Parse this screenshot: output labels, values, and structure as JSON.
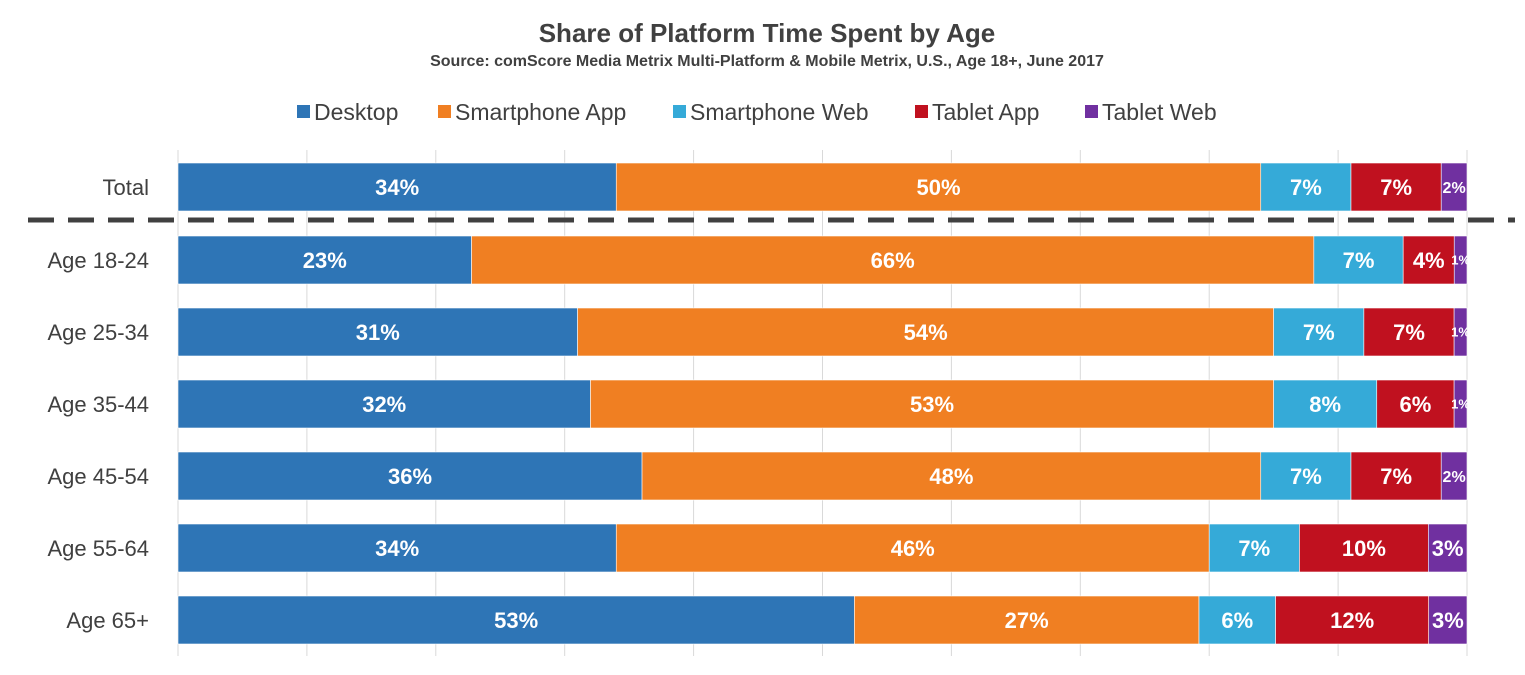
{
  "chart_data": {
    "type": "bar",
    "orientation": "horizontal",
    "stacked": true,
    "title": "Share of Platform Time Spent by Age",
    "subtitle": "Source: comScore Media Metrix Multi-Platform & Mobile Metrix, U.S., Age 18+, June 2017",
    "categories": [
      "Total",
      "Age 18-24",
      "Age 25-34",
      "Age 35-44",
      "Age 45-54",
      "Age 55-64",
      "Age 65+"
    ],
    "series": [
      {
        "name": "Desktop",
        "color": "#2e75b6",
        "values": [
          34,
          23,
          31,
          32,
          36,
          34,
          53
        ],
        "labels": [
          "34%",
          "23%",
          "31%",
          "32%",
          "36%",
          "34%",
          "53%"
        ]
      },
      {
        "name": "Smartphone App",
        "color": "#f07f22",
        "values": [
          50,
          66,
          54,
          53,
          48,
          46,
          27
        ],
        "labels": [
          "50%",
          "66%",
          "54%",
          "53%",
          "48%",
          "46%",
          "27%"
        ]
      },
      {
        "name": "Smartphone Web",
        "color": "#35aad8",
        "values": [
          7,
          7,
          7,
          8,
          7,
          7,
          6
        ],
        "labels": [
          "7%",
          "7%",
          "7%",
          "8%",
          "7%",
          "7%",
          "6%"
        ]
      },
      {
        "name": "Tablet App",
        "color": "#c0111f",
        "values": [
          7,
          4,
          7,
          6,
          7,
          10,
          12
        ],
        "labels": [
          "7%",
          "4%",
          "7%",
          "6%",
          "7%",
          "10%",
          "12%"
        ]
      },
      {
        "name": "Tablet Web",
        "color": "#7030a0",
        "values": [
          2,
          1,
          1,
          1,
          2,
          3,
          3
        ],
        "labels": [
          "2%",
          "1%",
          "1%",
          "1%",
          "2%",
          "3%",
          "3%"
        ]
      }
    ],
    "xlim": [
      0,
      100
    ],
    "grid": true,
    "legend_position": "top",
    "separator_after_category": "Total"
  }
}
